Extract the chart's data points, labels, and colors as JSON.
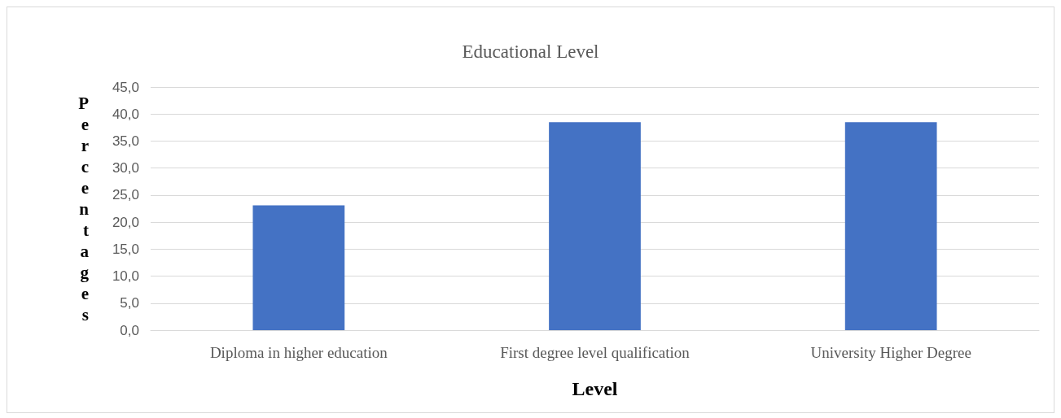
{
  "chart_data": {
    "type": "bar",
    "title": "Educational Level",
    "xlabel": "Level",
    "ylabel": "Percentages",
    "categories": [
      "Diploma in higher education",
      "First degree level qualification",
      "University Higher Degree"
    ],
    "values": [
      23.1,
      38.5,
      38.5
    ],
    "color": "#4472c4",
    "ylim": [
      0,
      45
    ],
    "yticks": [
      {
        "value": 0,
        "label": "0,0"
      },
      {
        "value": 5,
        "label": "5,0"
      },
      {
        "value": 10,
        "label": "10,0"
      },
      {
        "value": 15,
        "label": "15,0"
      },
      {
        "value": 20,
        "label": "20,0"
      },
      {
        "value": 25,
        "label": "25,0"
      },
      {
        "value": 30,
        "label": "30,0"
      },
      {
        "value": 35,
        "label": "35,0"
      },
      {
        "value": 40,
        "label": "40,0"
      },
      {
        "value": 45,
        "label": "45,0"
      }
    ],
    "grid": "y"
  }
}
